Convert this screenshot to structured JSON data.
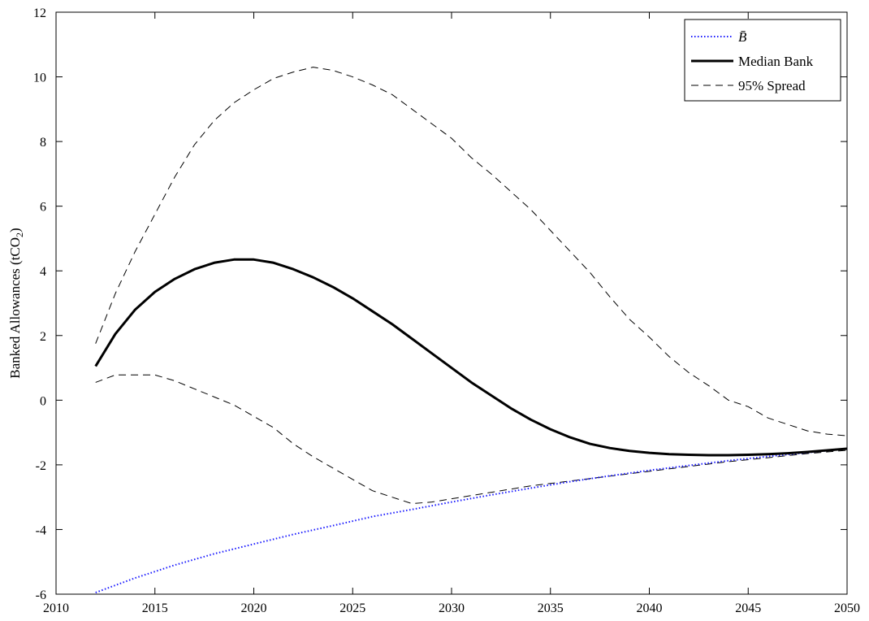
{
  "chart_data": {
    "type": "line",
    "title": "",
    "xlabel": "",
    "ylabel": "Banked Allowances (tCO",
    "ylabel_subscript": "2",
    "ylabel_suffix": ")",
    "xlim": [
      2010,
      2050
    ],
    "ylim": [
      -6,
      12
    ],
    "xticks": [
      2010,
      2015,
      2020,
      2025,
      2030,
      2035,
      2040,
      2045,
      2050
    ],
    "yticks": [
      -6,
      -4,
      -2,
      0,
      2,
      4,
      6,
      8,
      10,
      12
    ],
    "grid": false,
    "legend_position": "top-right",
    "series": [
      {
        "name": "B̄",
        "style": "dotted",
        "color": "#1a1aff",
        "x": [
          2012,
          2014,
          2016,
          2018,
          2020,
          2022,
          2024,
          2026,
          2028,
          2030,
          2032,
          2034,
          2036,
          2038,
          2040,
          2042,
          2044,
          2046,
          2048,
          2050
        ],
        "y": [
          -5.95,
          -5.5,
          -5.1,
          -4.75,
          -4.45,
          -4.15,
          -3.88,
          -3.6,
          -3.38,
          -3.15,
          -2.93,
          -2.72,
          -2.52,
          -2.34,
          -2.17,
          -2.02,
          -1.87,
          -1.74,
          -1.62,
          -1.5
        ]
      },
      {
        "name": "Median Bank",
        "style": "solid",
        "color": "#000000",
        "x": [
          2012,
          2013,
          2014,
          2015,
          2016,
          2017,
          2018,
          2019,
          2020,
          2021,
          2022,
          2023,
          2024,
          2025,
          2026,
          2027,
          2028,
          2029,
          2030,
          2031,
          2032,
          2033,
          2034,
          2035,
          2036,
          2037,
          2038,
          2039,
          2040,
          2041,
          2042,
          2043,
          2044,
          2045,
          2046,
          2047,
          2048,
          2049,
          2050
        ],
        "y": [
          1.05,
          2.05,
          2.8,
          3.35,
          3.75,
          4.05,
          4.25,
          4.35,
          4.35,
          4.25,
          4.05,
          3.8,
          3.5,
          3.15,
          2.75,
          2.35,
          1.9,
          1.45,
          1.0,
          0.55,
          0.15,
          -0.25,
          -0.6,
          -0.9,
          -1.15,
          -1.35,
          -1.48,
          -1.57,
          -1.63,
          -1.67,
          -1.69,
          -1.7,
          -1.7,
          -1.69,
          -1.67,
          -1.64,
          -1.6,
          -1.55,
          -1.5
        ]
      },
      {
        "name": "95% Spread",
        "style": "dashed",
        "color": "#000000",
        "x": [
          2012,
          2013,
          2014,
          2015,
          2016,
          2017,
          2018,
          2019,
          2020,
          2021,
          2022,
          2023,
          2024,
          2025,
          2026,
          2027,
          2028,
          2029,
          2030,
          2031,
          2032,
          2033,
          2034,
          2035,
          2036,
          2037,
          2038,
          2039,
          2040,
          2041,
          2042,
          2043,
          2044,
          2045,
          2046,
          2047,
          2048,
          2049,
          2050
        ],
        "y": [
          1.75,
          3.3,
          4.6,
          5.75,
          6.9,
          7.9,
          8.65,
          9.2,
          9.6,
          9.95,
          10.15,
          10.3,
          10.2,
          10.0,
          9.75,
          9.45,
          9.0,
          8.55,
          8.1,
          7.5,
          7.0,
          6.45,
          5.9,
          5.25,
          4.6,
          3.95,
          3.2,
          2.5,
          1.95,
          1.35,
          0.85,
          0.45,
          0.0,
          -0.2,
          -0.55,
          -0.75,
          -0.95,
          -1.05,
          -1.1
        ]
      },
      {
        "name": "95% Spread lower",
        "style": "dashed",
        "color": "#000000",
        "show_in_legend": false,
        "x": [
          2012,
          2013,
          2014,
          2015,
          2016,
          2017,
          2018,
          2019,
          2020,
          2021,
          2022,
          2023,
          2024,
          2025,
          2026,
          2027,
          2028,
          2029,
          2030,
          2032,
          2034,
          2036,
          2038,
          2040,
          2042,
          2044,
          2046,
          2048,
          2050
        ],
        "y": [
          0.55,
          0.78,
          0.78,
          0.78,
          0.6,
          0.35,
          0.1,
          -0.15,
          -0.5,
          -0.85,
          -1.35,
          -1.75,
          -2.1,
          -2.45,
          -2.8,
          -3.0,
          -3.2,
          -3.15,
          -3.05,
          -2.85,
          -2.65,
          -2.5,
          -2.35,
          -2.2,
          -2.05,
          -1.9,
          -1.78,
          -1.65,
          -1.55
        ]
      }
    ]
  }
}
